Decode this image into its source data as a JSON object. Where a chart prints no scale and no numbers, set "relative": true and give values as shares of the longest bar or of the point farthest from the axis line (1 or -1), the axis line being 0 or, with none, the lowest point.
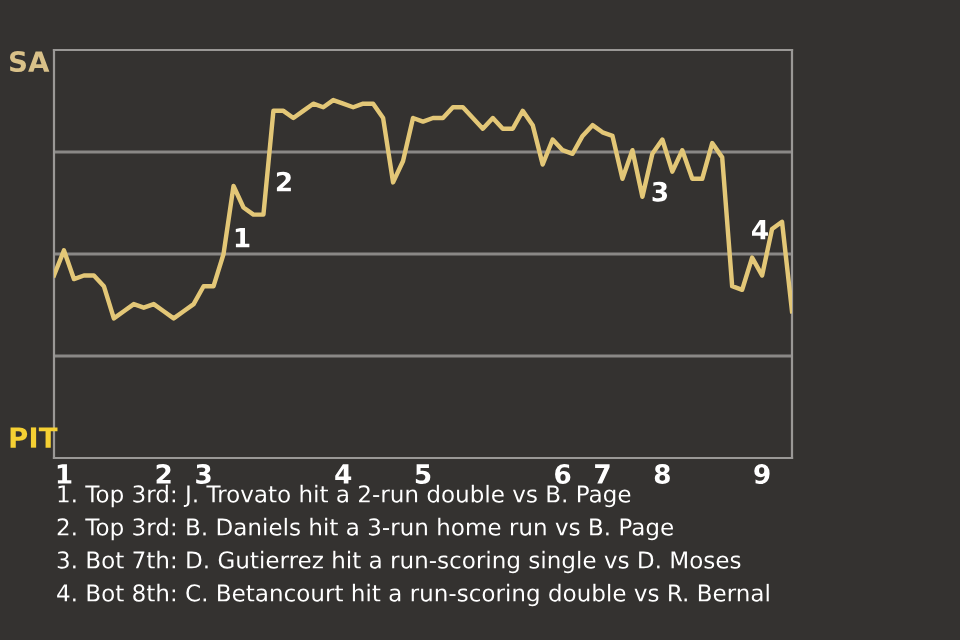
{
  "chart_data": {
    "type": "line",
    "categories": [
      null,
      "1",
      null,
      null,
      null,
      null,
      null,
      null,
      null,
      null,
      null,
      "2",
      null,
      null,
      null,
      "3",
      null,
      null,
      null,
      null,
      null,
      null,
      null,
      null,
      null,
      null,
      null,
      null,
      null,
      "4",
      null,
      null,
      null,
      null,
      null,
      null,
      null,
      "5",
      null,
      null,
      null,
      null,
      null,
      null,
      null,
      null,
      null,
      null,
      null,
      null,
      null,
      "6",
      null,
      null,
      null,
      "7",
      null,
      null,
      null,
      null,
      null,
      "8",
      null,
      null,
      null,
      null,
      null,
      null,
      null,
      null,
      null,
      "9",
      null,
      null,
      null
    ],
    "series": [
      {
        "color": "#e3c777",
        "values": [
          0.51,
          0.58,
          0.5,
          0.51,
          0.51,
          0.48,
          0.39,
          0.41,
          0.43,
          0.42,
          0.43,
          0.41,
          0.39,
          0.41,
          0.43,
          0.48,
          0.48,
          0.57,
          0.76,
          0.7,
          0.68,
          0.68,
          0.97,
          0.97,
          0.95,
          0.97,
          0.99,
          0.98,
          1,
          0.99,
          0.98,
          0.99,
          0.99,
          0.95,
          0.77,
          0.83,
          0.95,
          0.94,
          0.95,
          0.95,
          0.98,
          0.98,
          0.95,
          0.92,
          0.95,
          0.92,
          0.92,
          0.97,
          0.93,
          0.82,
          0.89,
          0.86,
          0.85,
          0.9,
          0.93,
          0.91,
          0.9,
          0.78,
          0.86,
          0.73,
          0.85,
          0.89,
          0.8,
          0.86,
          0.78,
          0.78,
          0.88,
          0.84,
          0.48,
          0.47,
          0.56,
          0.51,
          0.64,
          0.66,
          0.41
        ]
      }
    ],
    "relative": true,
    "grid": true,
    "annotations": [
      "SA",
      "PIT",
      "1",
      "2",
      "3",
      "4",
      "1. Top 3rd: J. Trovato hit a 2-run double vs B. Page",
      "2. Top 3rd: B. Daniels hit a 3-run home run vs B. Page",
      "3. Bot 7th: D. Gutierrez hit a run-scoring single vs D. Moses",
      "4. Bot 8th: C. Betancourt hit a run-scoring double vs R. Bernal"
    ],
    "marker": "none",
    "line_style": "solid"
  }
}
